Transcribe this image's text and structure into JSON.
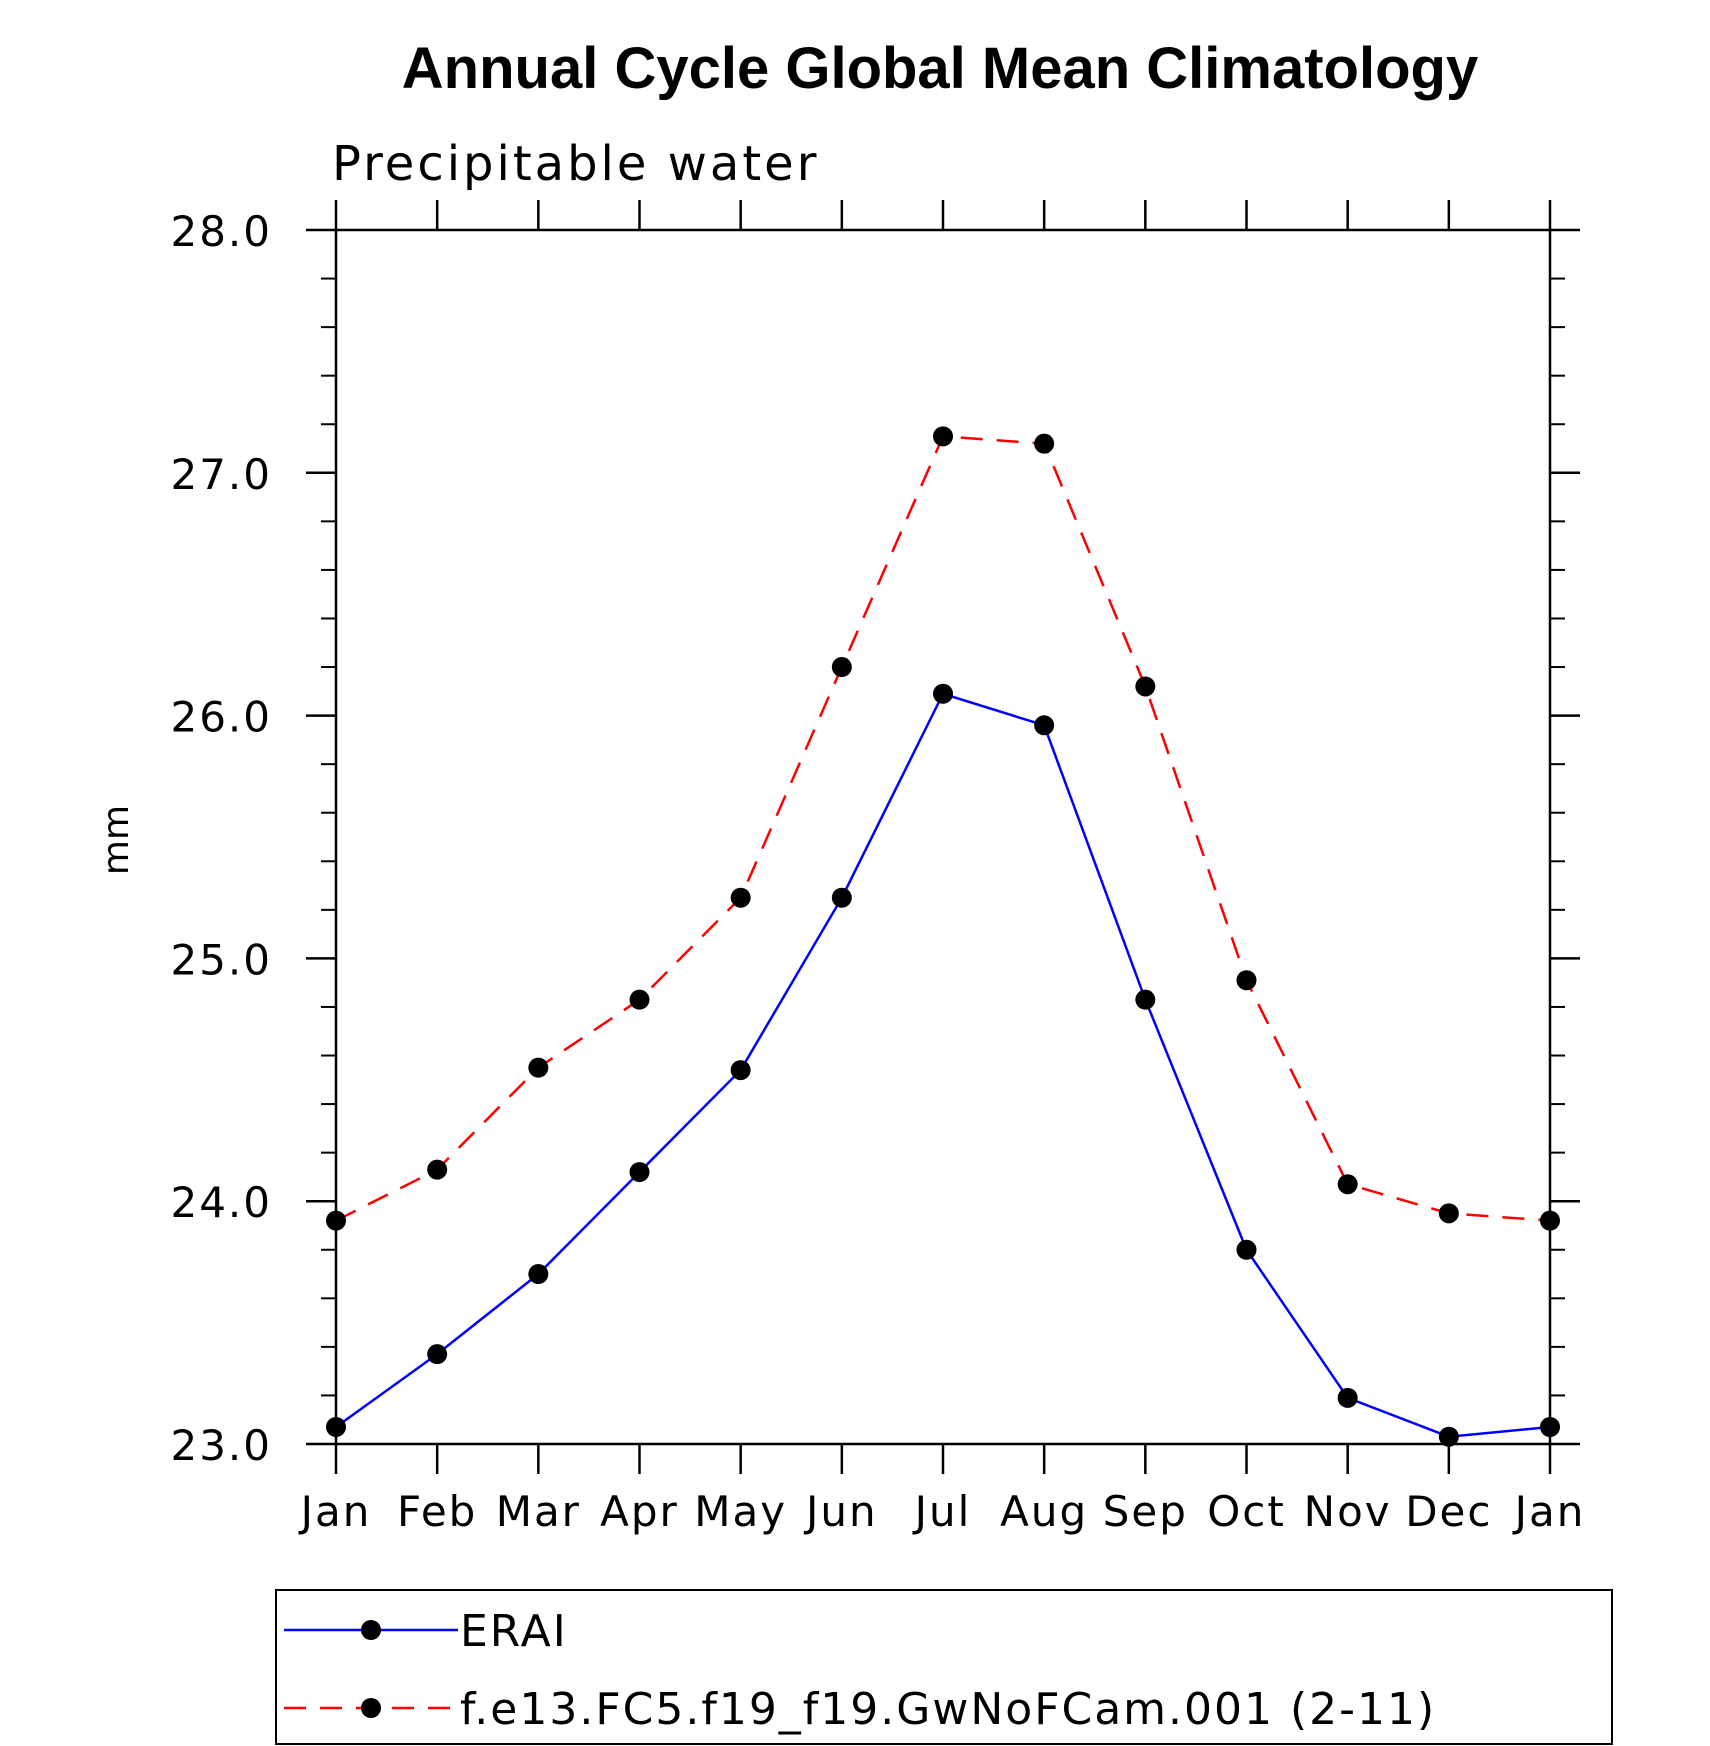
{
  "chart_data": {
    "type": "line",
    "title": "Annual Cycle Global Mean Climatology",
    "subtitle": "Precipitable water",
    "xlabel": "",
    "ylabel": "mm",
    "categories": [
      "Jan",
      "Feb",
      "Mar",
      "Apr",
      "May",
      "Jun",
      "Jul",
      "Aug",
      "Sep",
      "Oct",
      "Nov",
      "Dec",
      "Jan"
    ],
    "ylim": [
      23.0,
      28.0
    ],
    "yticks": [
      "23.0",
      "24.0",
      "25.0",
      "26.0",
      "27.0",
      "28.0"
    ],
    "grid": false,
    "legend_position": "bottom",
    "series": [
      {
        "name": "ERAI",
        "color": "#0000ff",
        "style": "solid",
        "marker": "circle",
        "values": [
          23.07,
          23.37,
          23.7,
          24.12,
          24.54,
          25.25,
          26.09,
          25.96,
          24.83,
          23.8,
          23.19,
          23.03,
          23.07
        ]
      },
      {
        "name": "f.e13.FC5.f19_f19.GwNoFCam.001 (2-11)",
        "color": "#ff0000",
        "style": "dashed",
        "marker": "circle",
        "values": [
          23.92,
          24.13,
          24.55,
          24.83,
          25.25,
          26.2,
          27.15,
          27.12,
          26.12,
          24.91,
          24.07,
          23.95,
          23.92
        ]
      }
    ]
  }
}
